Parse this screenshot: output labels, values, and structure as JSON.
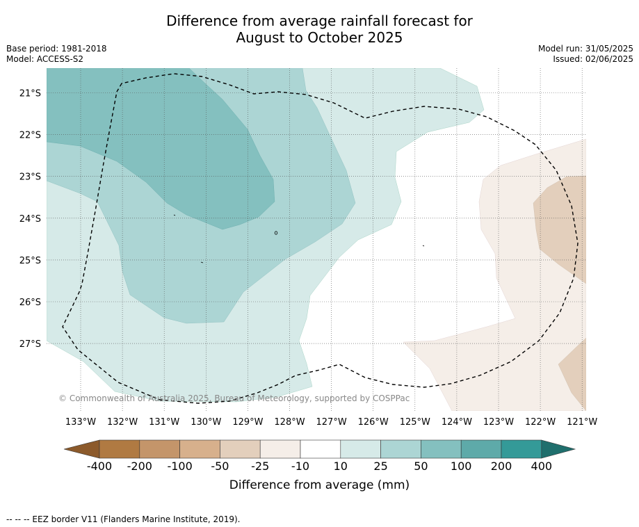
{
  "title_line1": "Difference from average rainfall forecast for",
  "title_line2": "August to October 2025",
  "base_period": "Base period: 1981-2018",
  "model": "Model: ACCESS-S2",
  "model_run": "Model run: 31/05/2025",
  "issued": "Issued: 02/06/2025",
  "lat_labels": [
    "21°S",
    "22°S",
    "23°S",
    "24°S",
    "25°S",
    "26°S",
    "27°S"
  ],
  "lon_labels": [
    "133°W",
    "132°W",
    "131°W",
    "130°W",
    "129°W",
    "128°W",
    "127°W",
    "126°W",
    "125°W",
    "124°W",
    "123°W",
    "122°W",
    "121°W"
  ],
  "copyright": "© Commonwealth of Australia 2025, Bureau of Meteorology, supported by COSPPac",
  "colorbar": {
    "ticks": [
      "-400",
      "-200",
      "-100",
      "-50",
      "-25",
      "-10",
      "10",
      "25",
      "50",
      "100",
      "200",
      "400"
    ],
    "colors": [
      "#8c5a2b",
      "#b07a42",
      "#c4956a",
      "#d7b08c",
      "#e3cfbc",
      "#f5eee8",
      "#ffffff",
      "#d6eae8",
      "#acd5d4",
      "#84c0bf",
      "#5eaaa9",
      "#349a98",
      "#1f6f6d"
    ],
    "label": "Difference from average (mm)"
  },
  "footnote": "-- -- -- EEZ border V11 (Flanders Marine Institute, 2019)."
}
